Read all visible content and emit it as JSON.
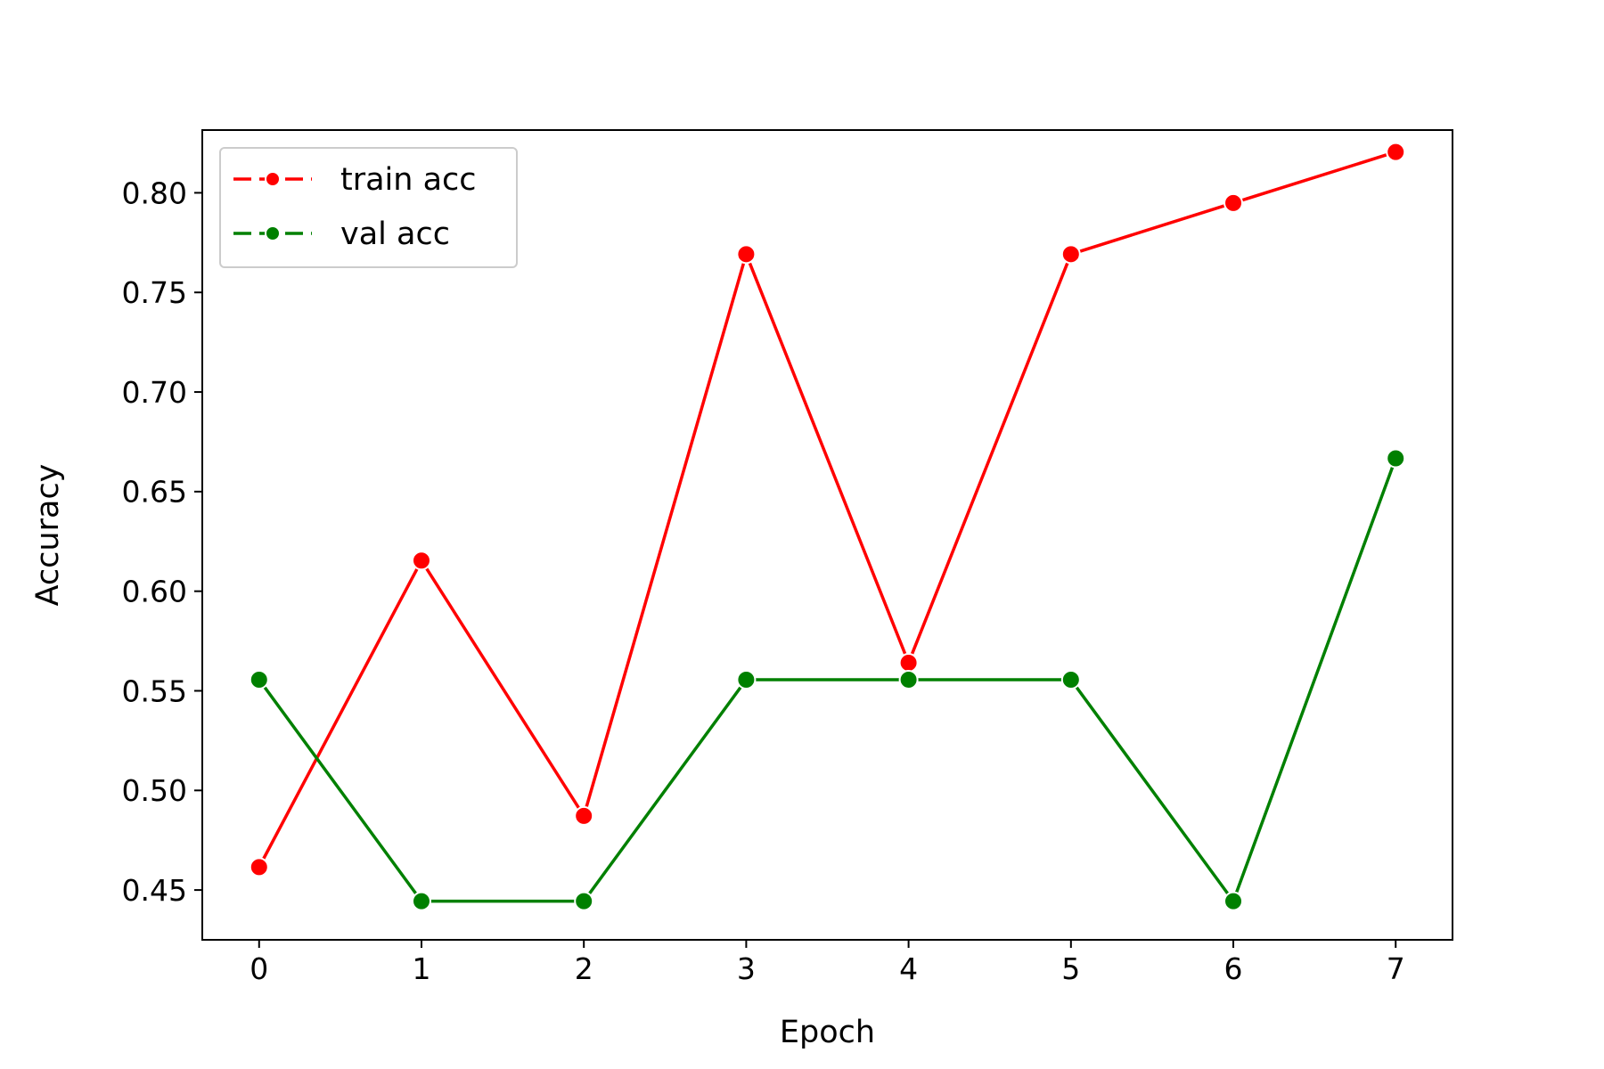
{
  "chart_data": {
    "type": "line",
    "title": "",
    "xlabel": "Epoch",
    "ylabel": "Accuracy",
    "x": [
      0,
      1,
      2,
      3,
      4,
      5,
      6,
      7
    ],
    "x_ticks": [
      "0",
      "1",
      "2",
      "3",
      "4",
      "5",
      "6",
      "7"
    ],
    "y_ticks": [
      "0.45",
      "0.50",
      "0.55",
      "0.60",
      "0.65",
      "0.70",
      "0.75",
      "0.80"
    ],
    "xlim": [
      -0.35,
      7.35
    ],
    "ylim": [
      0.425,
      0.8315
    ],
    "grid": false,
    "legend_position": "top-left",
    "series": [
      {
        "name": "train acc",
        "color": "#ff0000",
        "marker": "circle",
        "values": [
          0.4615,
          0.6154,
          0.4872,
          0.7692,
          0.5641,
          0.7692,
          0.7949,
          0.8205
        ]
      },
      {
        "name": "val acc",
        "color": "#008000",
        "marker": "circle",
        "values": [
          0.5556,
          0.4444,
          0.4444,
          0.5556,
          0.5556,
          0.5556,
          0.4444,
          0.6667
        ]
      }
    ]
  }
}
